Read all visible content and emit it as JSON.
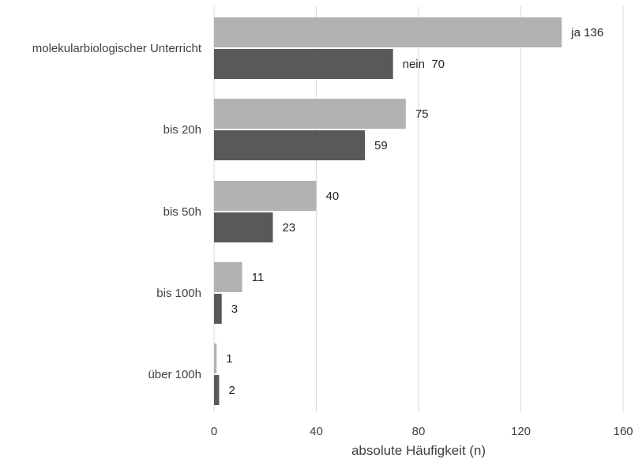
{
  "chart_data": {
    "type": "bar",
    "orientation": "horizontal",
    "categories": [
      "molekularbiologischer Unterricht",
      "bis 20h",
      "bis 50h",
      "bis 100h",
      "über 100h"
    ],
    "series": [
      {
        "values": [
          136,
          75,
          40,
          11,
          1
        ],
        "color": "#b2b2b2"
      },
      {
        "values": [
          70,
          59,
          23,
          3,
          2
        ],
        "color": "#595959"
      }
    ],
    "data_labels": [
      [
        "ja 136",
        "75",
        "40",
        "11",
        "1"
      ],
      [
        "nein  70",
        "59",
        "23",
        "3",
        "2"
      ]
    ],
    "xlabel": "absolute Häufigkeit (n)",
    "xlim": [
      0,
      160
    ],
    "xticks": [
      0,
      40,
      80,
      120,
      160
    ],
    "grid": "vertical",
    "legend": "none"
  }
}
